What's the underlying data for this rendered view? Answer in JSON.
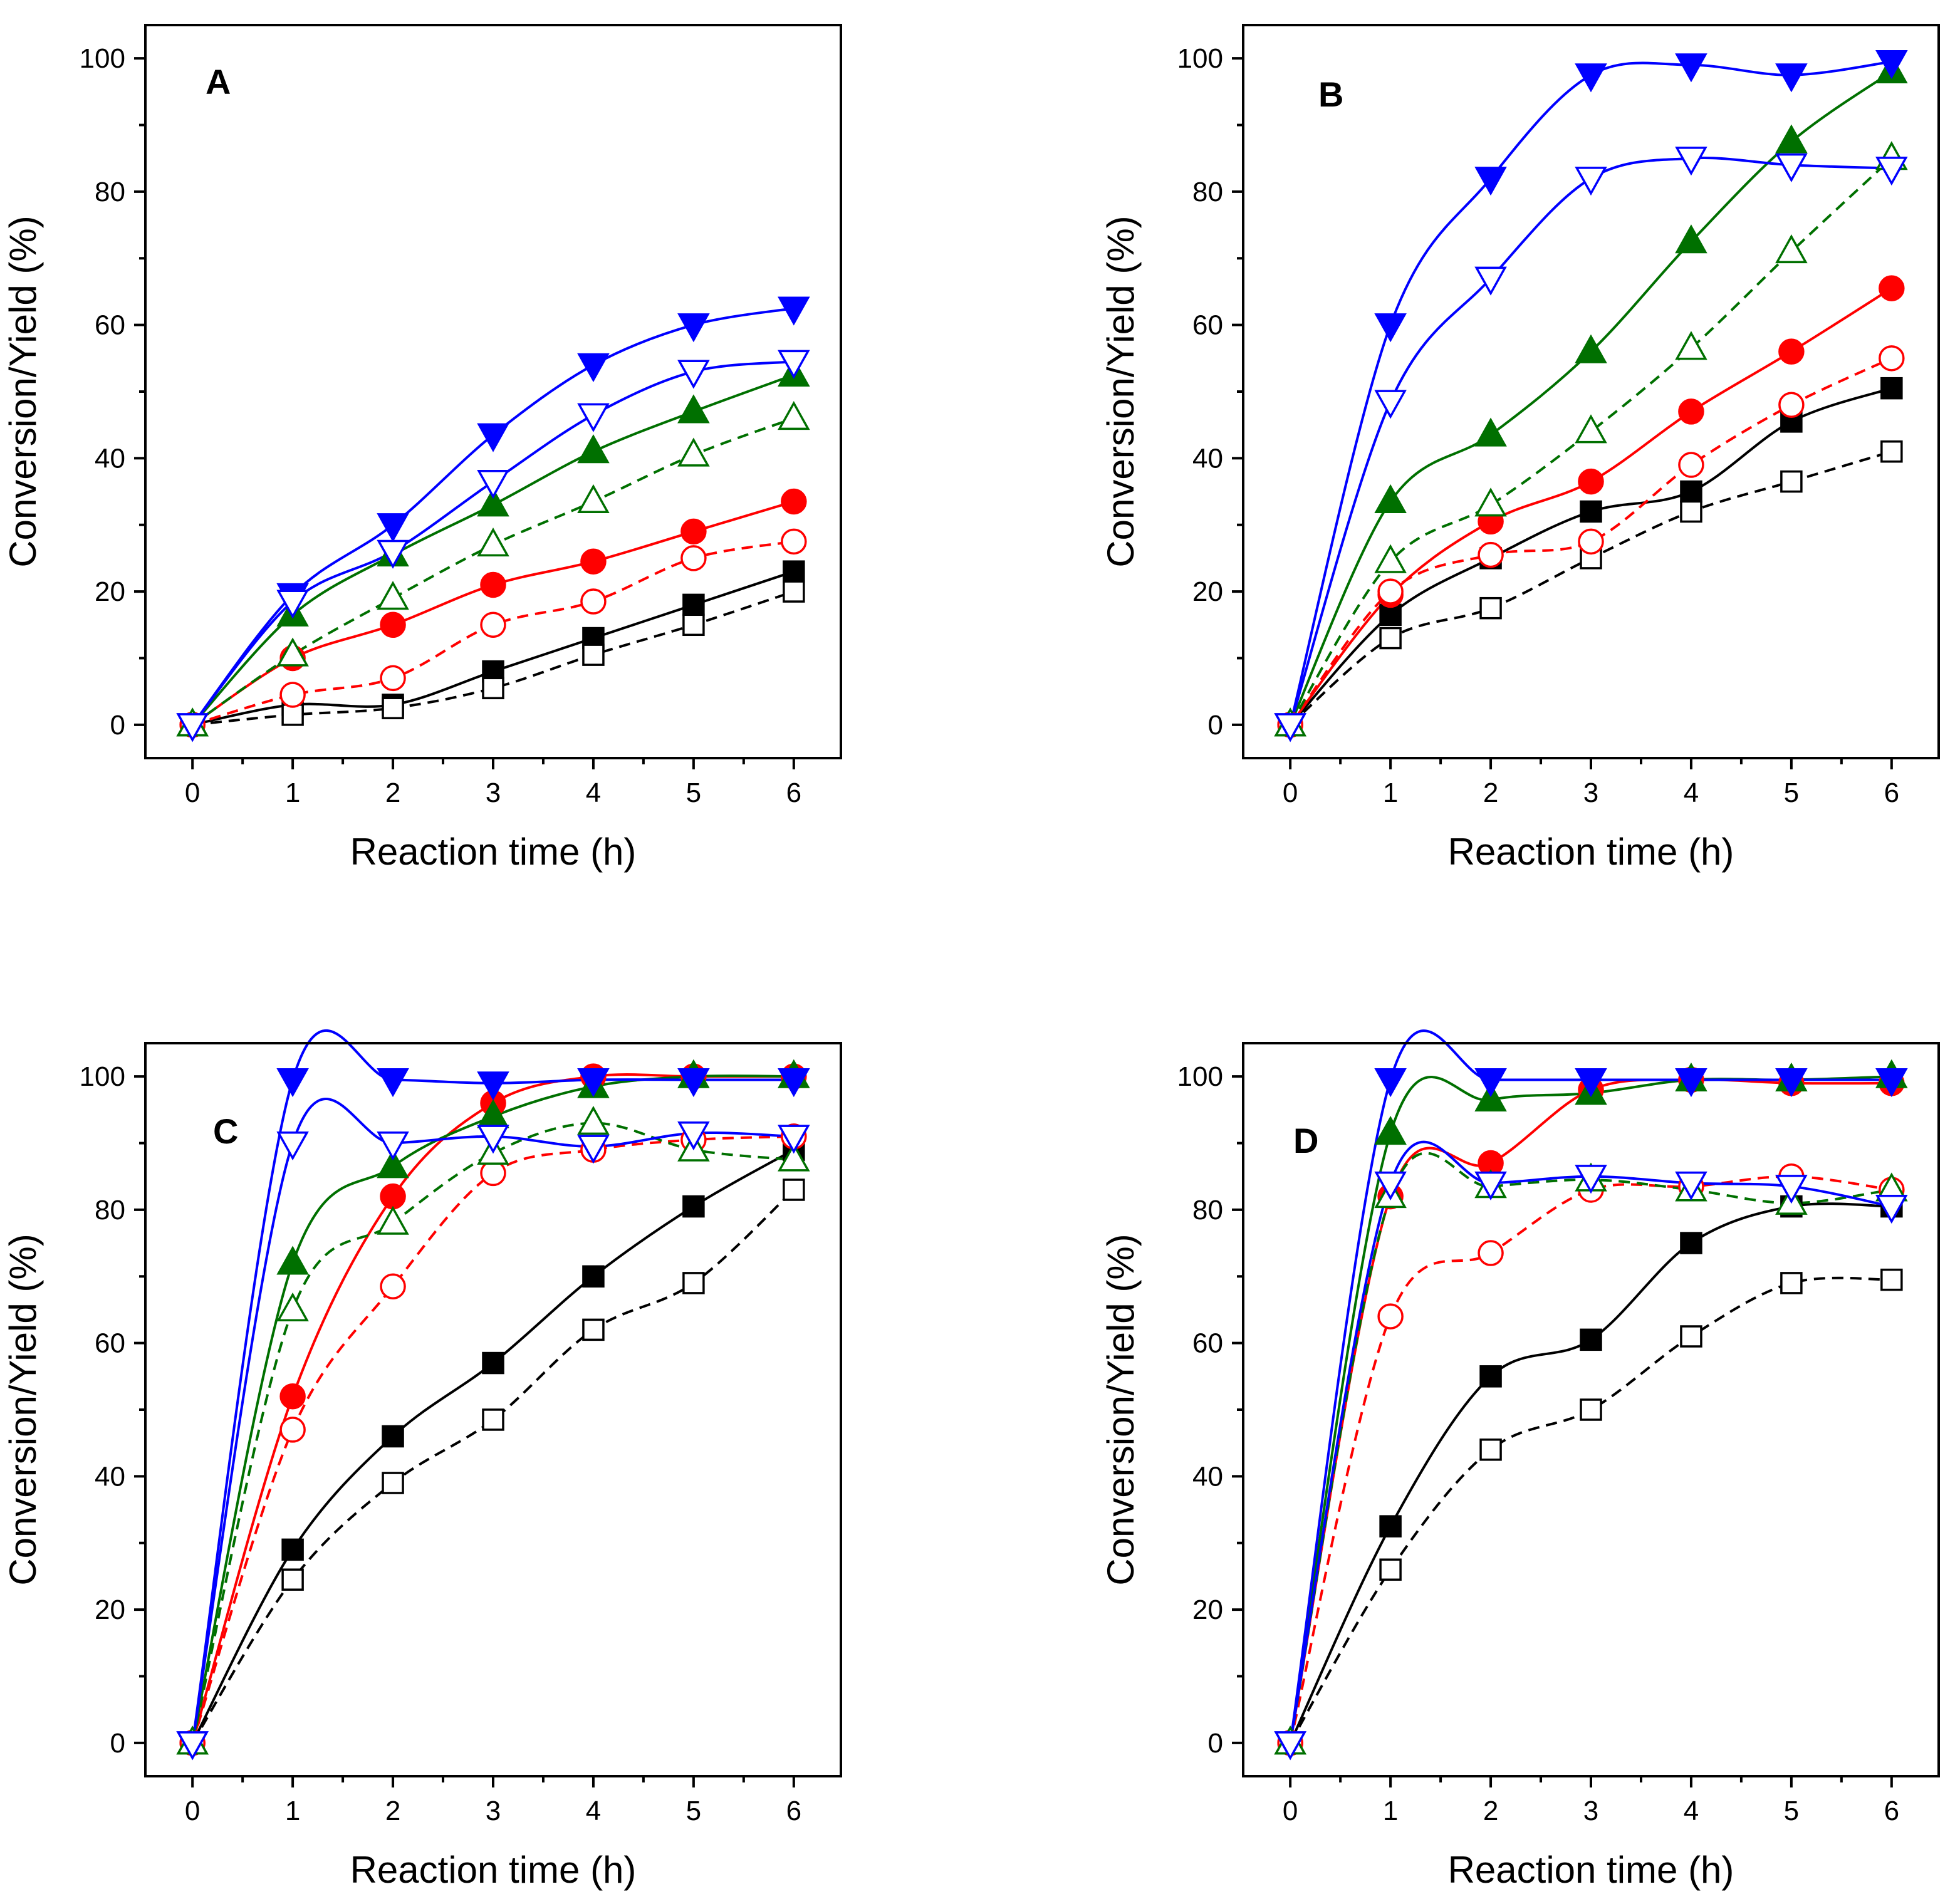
{
  "chart_data": [
    {
      "panel": "A",
      "type": "line",
      "x": [
        0,
        1,
        2,
        3,
        4,
        5,
        6
      ],
      "xlabel": "Reaction time (h)",
      "ylabel": "Conversion/Yield (%)",
      "xlim": [
        -0.47,
        6.47
      ],
      "ylim": [
        -5,
        105
      ],
      "xticks": [
        "0",
        "1",
        "2",
        "3",
        "4",
        "5",
        "6"
      ],
      "yticks": [
        "0",
        "20",
        "40",
        "60",
        "80",
        "100"
      ],
      "series": [
        {
          "color": "#000000",
          "marker": "square",
          "filled": true,
          "dashed": false,
          "values": [
            0,
            3,
            3,
            8,
            13,
            18,
            23
          ]
        },
        {
          "color": "#000000",
          "marker": "square",
          "filled": false,
          "dashed": true,
          "values": [
            0,
            1.5,
            2.5,
            5.5,
            10.5,
            15,
            20
          ]
        },
        {
          "color": "#ff0000",
          "marker": "circle",
          "filled": true,
          "dashed": false,
          "values": [
            0,
            10,
            15,
            21,
            24.5,
            29,
            33.5
          ]
        },
        {
          "color": "#ff0000",
          "marker": "circle",
          "filled": false,
          "dashed": true,
          "values": [
            0,
            4.5,
            7,
            15,
            18.5,
            25,
            27.5
          ]
        },
        {
          "color": "#007000",
          "marker": "triangle-up",
          "filled": true,
          "dashed": false,
          "values": [
            0,
            16.5,
            25.5,
            33,
            41,
            47,
            52.5
          ]
        },
        {
          "color": "#007000",
          "marker": "triangle-up",
          "filled": false,
          "dashed": true,
          "values": [
            0,
            10.5,
            19,
            27,
            33.5,
            40.5,
            46
          ]
        },
        {
          "color": "#0000ff",
          "marker": "triangle-down",
          "filled": true,
          "dashed": false,
          "values": [
            0,
            19.5,
            30,
            43.5,
            54,
            60,
            62.5
          ]
        },
        {
          "color": "#0000ff",
          "marker": "triangle-down",
          "filled": false,
          "dashed": false,
          "values": [
            0,
            18.5,
            26,
            36.5,
            46.5,
            53,
            54.5
          ]
        }
      ]
    },
    {
      "panel": "B",
      "type": "line",
      "x": [
        0,
        1,
        2,
        3,
        4,
        5,
        6
      ],
      "xlabel": "Reaction time (h)",
      "ylabel": "Conversion/Yield (%)",
      "xlim": [
        -0.47,
        6.47
      ],
      "ylim": [
        -5,
        105
      ],
      "xticks": [
        "0",
        "1",
        "2",
        "3",
        "4",
        "5",
        "6"
      ],
      "yticks": [
        "0",
        "20",
        "40",
        "60",
        "80",
        "100"
      ],
      "series": [
        {
          "color": "#000000",
          "marker": "square",
          "filled": true,
          "dashed": false,
          "values": [
            0,
            16.5,
            25,
            32,
            35,
            45.5,
            50.5
          ]
        },
        {
          "color": "#000000",
          "marker": "square",
          "filled": false,
          "dashed": true,
          "values": [
            0,
            13,
            17.5,
            25,
            32,
            36.5,
            41
          ]
        },
        {
          "color": "#ff0000",
          "marker": "circle",
          "filled": true,
          "dashed": false,
          "values": [
            0,
            19.5,
            30.5,
            36.5,
            47,
            56,
            65.5
          ]
        },
        {
          "color": "#ff0000",
          "marker": "circle",
          "filled": false,
          "dashed": true,
          "values": [
            0,
            20,
            25.5,
            27.5,
            39,
            48,
            55
          ]
        },
        {
          "color": "#007000",
          "marker": "triangle-up",
          "filled": true,
          "dashed": false,
          "values": [
            0,
            33.5,
            43.5,
            56,
            72.5,
            87.5,
            98
          ]
        },
        {
          "color": "#007000",
          "marker": "triangle-up",
          "filled": false,
          "dashed": true,
          "values": [
            0,
            24.5,
            33,
            44,
            56.5,
            71,
            85
          ]
        },
        {
          "color": "#0000ff",
          "marker": "triangle-down",
          "filled": true,
          "dashed": false,
          "values": [
            0,
            60,
            82,
            97.5,
            99,
            97.5,
            99.5
          ]
        },
        {
          "color": "#0000ff",
          "marker": "triangle-down",
          "filled": false,
          "dashed": false,
          "values": [
            0,
            48.5,
            67,
            82,
            85,
            84,
            83.5
          ]
        }
      ]
    },
    {
      "panel": "C",
      "type": "line",
      "x": [
        0,
        1,
        2,
        3,
        4,
        5,
        6
      ],
      "xlabel": "Reaction time (h)",
      "ylabel": "Conversion/Yield (%)",
      "xlim": [
        -0.47,
        6.47
      ],
      "ylim": [
        -5,
        105
      ],
      "xticks": [
        "0",
        "1",
        "2",
        "3",
        "4",
        "5",
        "6"
      ],
      "yticks": [
        "0",
        "20",
        "40",
        "60",
        "80",
        "100"
      ],
      "series": [
        {
          "color": "#000000",
          "marker": "square",
          "filled": true,
          "dashed": false,
          "values": [
            0,
            29,
            46,
            57,
            70,
            80.5,
            89
          ]
        },
        {
          "color": "#000000",
          "marker": "square",
          "filled": false,
          "dashed": true,
          "values": [
            0,
            24.5,
            39,
            48.5,
            62,
            69,
            83
          ]
        },
        {
          "color": "#ff0000",
          "marker": "circle",
          "filled": true,
          "dashed": false,
          "values": [
            0,
            52,
            82,
            96,
            100,
            100,
            100
          ]
        },
        {
          "color": "#ff0000",
          "marker": "circle",
          "filled": false,
          "dashed": true,
          "values": [
            0,
            47,
            68.5,
            85.5,
            89,
            90.5,
            91
          ]
        },
        {
          "color": "#007000",
          "marker": "triangle-up",
          "filled": true,
          "dashed": false,
          "values": [
            0,
            72,
            86.5,
            94,
            98.5,
            100,
            100
          ]
        },
        {
          "color": "#007000",
          "marker": "triangle-up",
          "filled": false,
          "dashed": true,
          "values": [
            0,
            65,
            78,
            88.5,
            93,
            89,
            87.5
          ]
        },
        {
          "color": "#0000ff",
          "marker": "triangle-down",
          "filled": true,
          "dashed": false,
          "values": [
            0,
            99.5,
            99.5,
            99,
            99.5,
            99.5,
            99.5
          ]
        },
        {
          "color": "#0000ff",
          "marker": "triangle-down",
          "filled": false,
          "dashed": false,
          "values": [
            0,
            90,
            90,
            91,
            89.5,
            91.5,
            91
          ]
        }
      ]
    },
    {
      "panel": "D",
      "type": "line",
      "x": [
        0,
        1,
        2,
        3,
        4,
        5,
        6
      ],
      "xlabel": "Reaction time (h)",
      "ylabel": "Conversion/Yield (%)",
      "xlim": [
        -0.47,
        6.47
      ],
      "ylim": [
        -5,
        105
      ],
      "xticks": [
        "0",
        "1",
        "2",
        "3",
        "4",
        "5",
        "6"
      ],
      "yticks": [
        "0",
        "20",
        "40",
        "60",
        "80",
        "100"
      ],
      "series": [
        {
          "color": "#000000",
          "marker": "square",
          "filled": true,
          "dashed": false,
          "values": [
            0,
            32.5,
            55,
            60.5,
            75,
            80.5,
            80.5
          ]
        },
        {
          "color": "#000000",
          "marker": "square",
          "filled": false,
          "dashed": true,
          "values": [
            0,
            26,
            44,
            50,
            61,
            69,
            69.5
          ]
        },
        {
          "color": "#ff0000",
          "marker": "circle",
          "filled": true,
          "dashed": false,
          "values": [
            0,
            82,
            87,
            98,
            99.5,
            99,
            99
          ]
        },
        {
          "color": "#ff0000",
          "marker": "circle",
          "filled": false,
          "dashed": true,
          "values": [
            0,
            64,
            73.5,
            83,
            83.5,
            85,
            83
          ]
        },
        {
          "color": "#007000",
          "marker": "triangle-up",
          "filled": true,
          "dashed": false,
          "values": [
            0,
            91.5,
            96.5,
            97.5,
            99.5,
            99.5,
            100
          ]
        },
        {
          "color": "#007000",
          "marker": "triangle-up",
          "filled": false,
          "dashed": true,
          "values": [
            0,
            82,
            83.5,
            84.5,
            83,
            81,
            83
          ]
        },
        {
          "color": "#0000ff",
          "marker": "triangle-down",
          "filled": true,
          "dashed": false,
          "values": [
            0,
            99.5,
            99.5,
            99.5,
            99.5,
            99.5,
            99.5
          ]
        },
        {
          "color": "#0000ff",
          "marker": "triangle-down",
          "filled": false,
          "dashed": false,
          "values": [
            0,
            84,
            84,
            85,
            84,
            83.5,
            80.5
          ]
        }
      ]
    }
  ]
}
